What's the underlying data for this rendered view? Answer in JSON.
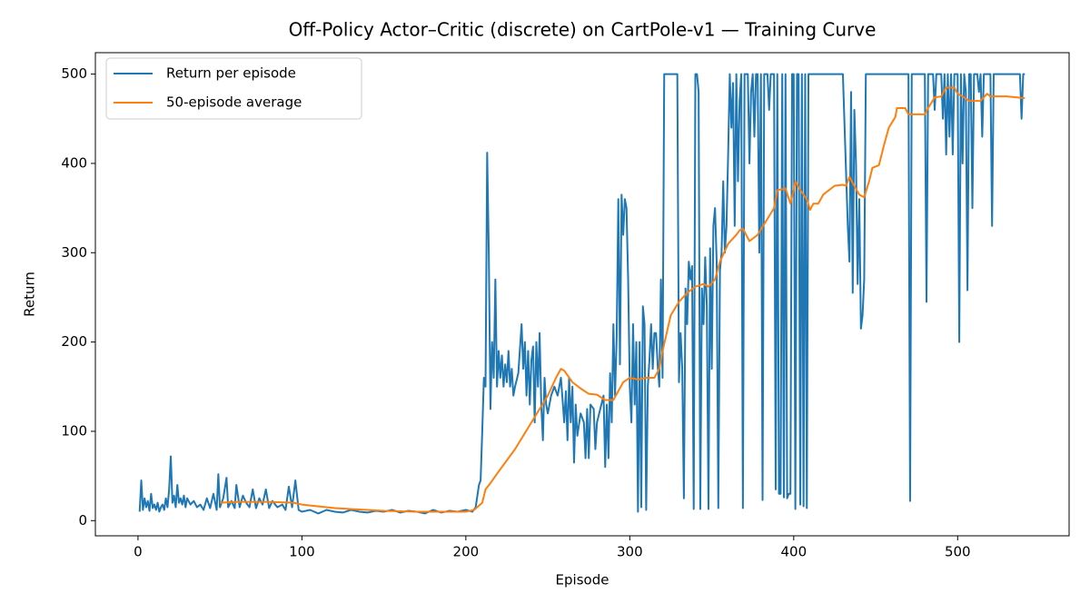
{
  "chart_data": {
    "type": "line",
    "title": "Off-Policy Actor–Critic (discrete) on CartPole-v1 — Training Curve",
    "xlabel": "Episode",
    "ylabel": "Return",
    "xlim": [
      -26,
      568
    ],
    "ylim": [
      -17,
      524
    ],
    "xticks": [
      0,
      100,
      200,
      300,
      400,
      500
    ],
    "yticks": [
      0,
      100,
      200,
      300,
      400,
      500
    ],
    "grid": false,
    "legend": "upper left",
    "series": [
      {
        "name": "Return per episode",
        "color": "#1f77b4",
        "x": [
          1,
          2,
          3,
          4,
          5,
          6,
          7,
          8,
          9,
          10,
          11,
          12,
          13,
          14,
          15,
          16,
          17,
          18,
          19,
          20,
          21,
          22,
          23,
          24,
          25,
          26,
          27,
          28,
          29,
          30,
          32,
          34,
          36,
          38,
          40,
          42,
          44,
          46,
          48,
          49,
          50,
          52,
          54,
          55,
          57,
          59,
          60,
          62,
          64,
          66,
          68,
          70,
          72,
          74,
          76,
          78,
          80,
          82,
          85,
          88,
          90,
          92,
          94,
          96,
          98,
          100,
          105,
          110,
          115,
          120,
          125,
          130,
          135,
          140,
          145,
          150,
          155,
          160,
          165,
          170,
          175,
          180,
          185,
          190,
          195,
          200,
          204,
          206,
          208,
          209,
          210,
          211,
          212,
          213,
          214,
          215,
          216,
          217,
          218,
          219,
          220,
          221,
          222,
          223,
          224,
          225,
          226,
          227,
          228,
          229,
          230,
          232,
          234,
          235,
          236,
          237,
          238,
          239,
          240,
          241,
          242,
          243,
          244,
          245,
          246,
          247,
          248,
          249,
          250,
          252,
          254,
          256,
          258,
          260,
          261,
          262,
          263,
          264,
          265,
          266,
          267,
          268,
          270,
          272,
          273,
          274,
          275,
          276,
          278,
          279,
          280,
          282,
          284,
          285,
          286,
          287,
          288,
          289,
          290,
          291,
          292,
          293,
          294,
          295,
          296,
          297,
          298,
          299,
          300,
          301,
          302,
          303,
          304,
          305,
          306,
          307,
          308,
          309,
          310,
          311,
          312,
          313,
          314,
          315,
          316,
          317,
          318,
          319,
          320,
          321,
          322,
          325,
          329,
          330,
          331,
          332,
          333,
          334,
          335,
          336,
          337,
          338,
          339,
          340,
          341,
          342,
          343,
          344,
          345,
          346,
          347,
          348,
          349,
          350,
          351,
          352,
          353,
          354,
          355,
          356,
          357,
          358,
          359,
          360,
          361,
          362,
          363,
          364,
          365,
          366,
          367,
          368,
          369,
          370,
          372,
          373,
          374,
          375,
          376,
          377,
          378,
          379,
          380,
          381,
          382,
          384,
          385,
          386,
          388,
          389,
          390,
          391,
          392,
          393,
          394,
          395,
          396,
          397,
          398,
          399,
          400,
          401,
          402,
          403,
          404,
          405,
          406,
          407,
          408,
          409,
          420,
          430,
          433,
          434,
          435,
          436,
          437,
          438,
          439,
          440,
          441,
          442,
          443,
          444,
          460,
          470,
          471,
          472,
          480,
          481,
          482,
          485,
          486,
          487,
          490,
          491,
          492,
          493,
          494,
          495,
          496,
          497,
          498,
          500,
          501,
          502,
          503,
          504,
          505,
          506,
          507,
          508,
          509,
          510,
          512,
          513,
          514,
          515,
          516,
          520,
          521,
          522,
          535,
          538,
          539,
          540,
          541
        ],
        "values": [
          10,
          45,
          12,
          25,
          15,
          22,
          11,
          30,
          14,
          18,
          12,
          20,
          10,
          15,
          18,
          12,
          25,
          15,
          35,
          72,
          20,
          28,
          15,
          40,
          20,
          25,
          18,
          28,
          15,
          25,
          18,
          22,
          15,
          18,
          12,
          25,
          14,
          30,
          12,
          52,
          15,
          25,
          48,
          15,
          22,
          14,
          40,
          15,
          28,
          20,
          15,
          35,
          14,
          25,
          18,
          35,
          14,
          22,
          15,
          18,
          12,
          38,
          15,
          45,
          12,
          10,
          12,
          8,
          12,
          10,
          9,
          12,
          10,
          9,
          11,
          10,
          12,
          9,
          11,
          10,
          8,
          12,
          9,
          11,
          10,
          12,
          10,
          15,
          40,
          45,
          100,
          160,
          150,
          412,
          300,
          125,
          200,
          160,
          270,
          150,
          190,
          160,
          185,
          150,
          175,
          155,
          190,
          150,
          170,
          140,
          150,
          165,
          220,
          170,
          200,
          140,
          190,
          130,
          180,
          195,
          110,
          200,
          150,
          210,
          130,
          90,
          160,
          130,
          120,
          140,
          150,
          140,
          160,
          110,
          145,
          90,
          160,
          110,
          150,
          65,
          130,
          95,
          120,
          110,
          70,
          125,
          70,
          130,
          125,
          80,
          110,
          125,
          140,
          60,
          130,
          70,
          165,
          110,
          220,
          140,
          205,
          360,
          175,
          365,
          320,
          360,
          350,
          270,
          150,
          110,
          220,
          130,
          200,
          10,
          200,
          15,
          240,
          220,
          12,
          150,
          180,
          220,
          170,
          210,
          210,
          175,
          150,
          270,
          160,
          500,
          500,
          500,
          500,
          155,
          210,
          170,
          25,
          260,
          220,
          290,
          270,
          285,
          13,
          500,
          500,
          480,
          13,
          260,
          220,
          295,
          240,
          13,
          305,
          170,
          330,
          350,
          290,
          14,
          280,
          300,
          380,
          300,
          330,
          410,
          500,
          440,
          490,
          330,
          500,
          380,
          470,
          500,
          14,
          500,
          500,
          400,
          480,
          500,
          430,
          500,
          500,
          300,
          500,
          23,
          500,
          500,
          460,
          500,
          500,
          35,
          500,
          30,
          30,
          500,
          26,
          500,
          25,
          30,
          30,
          500,
          500,
          13,
          500,
          500,
          18,
          500,
          16,
          500,
          14,
          500,
          500,
          500,
          330,
          290,
          480,
          255,
          460,
          400,
          265,
          360,
          215,
          230,
          270,
          500,
          500,
          500,
          22,
          500,
          500,
          245,
          500,
          500,
          460,
          500,
          500,
          450,
          500,
          410,
          500,
          430,
          500,
          410,
          500,
          500,
          200,
          500,
          400,
          500,
          480,
          258,
          500,
          500,
          350,
          500,
          500,
          480,
          500,
          430,
          500,
          500,
          330,
          500,
          500,
          500,
          450,
          500,
          500
        ]
      },
      {
        "name": "50-episode average",
        "color": "#ff7f0e",
        "x": [
          50,
          60,
          70,
          80,
          95,
          100,
          120,
          150,
          170,
          200,
          205,
          210,
          212,
          215,
          220,
          230,
          240,
          250,
          255,
          258,
          260,
          265,
          270,
          275,
          280,
          285,
          290,
          293,
          296,
          300,
          305,
          310,
          315,
          318,
          320,
          325,
          330,
          335,
          340,
          345,
          348,
          352,
          355,
          360,
          365,
          367,
          369,
          371,
          373,
          378,
          383,
          388,
          390,
          395,
          398,
          400,
          401,
          404,
          408,
          410,
          412,
          415,
          418,
          425,
          430,
          432,
          434,
          436,
          440,
          443,
          446,
          448,
          452,
          455,
          458,
          462,
          463,
          468,
          470,
          480,
          482,
          486,
          490,
          493,
          498,
          500,
          503,
          507,
          510,
          514,
          518,
          520,
          530,
          541
        ],
        "values": [
          20,
          21,
          21,
          21,
          20,
          18,
          14,
          11,
          10,
          10,
          12,
          20,
          35,
          42,
          55,
          80,
          110,
          140,
          160,
          170,
          168,
          155,
          148,
          142,
          141,
          135,
          135,
          145,
          155,
          160,
          158,
          160,
          160,
          170,
          190,
          230,
          245,
          255,
          262,
          265,
          262,
          270,
          290,
          310,
          320,
          325,
          327,
          320,
          313,
          320,
          335,
          350,
          370,
          372,
          355,
          370,
          380,
          370,
          360,
          348,
          355,
          355,
          365,
          375,
          376,
          375,
          385,
          378,
          365,
          362,
          380,
          395,
          398,
          420,
          440,
          452,
          462,
          462,
          455,
          455,
          462,
          474,
          475,
          485,
          485,
          478,
          475,
          470,
          470,
          470,
          478,
          475,
          475,
          473
        ]
      }
    ]
  }
}
